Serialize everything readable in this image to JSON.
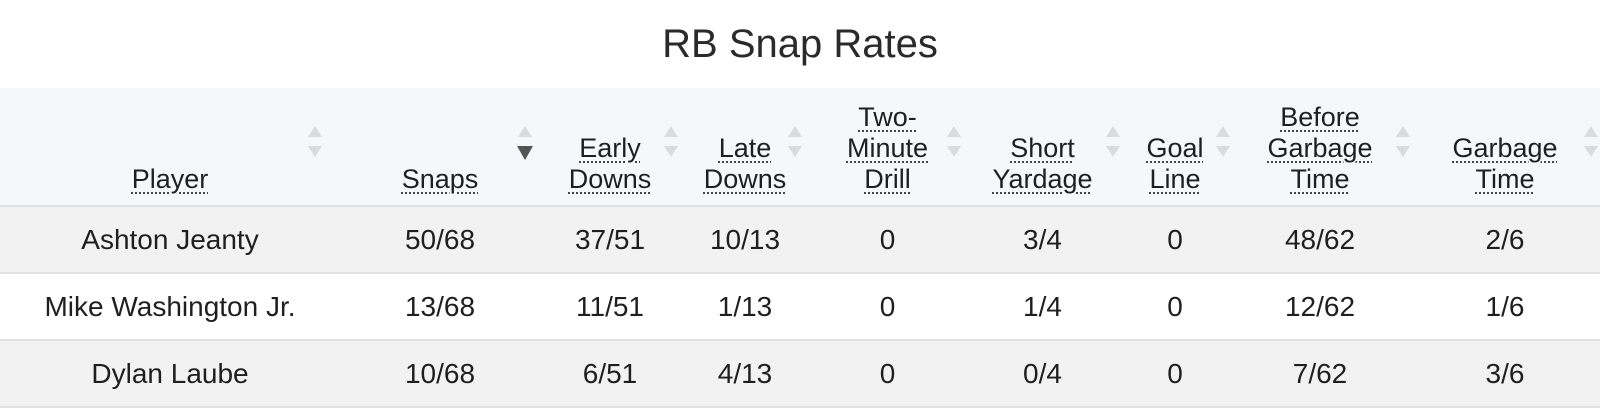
{
  "title": "RB Snap Rates",
  "columns": [
    {
      "label": "Player"
    },
    {
      "label": "Snaps"
    },
    {
      "label": "Early Downs"
    },
    {
      "label": "Late Downs"
    },
    {
      "label": "Two-Minute Drill"
    },
    {
      "label": "Short Yardage"
    },
    {
      "label": "Goal Line"
    },
    {
      "label": "Before Garbage Time"
    },
    {
      "label": "Garbage Time"
    }
  ],
  "sorted_column": "Snaps",
  "sort_direction": "descending",
  "rows": [
    [
      "Ashton Jeanty",
      "50/68",
      "37/51",
      "10/13",
      "0",
      "3/4",
      "0",
      "48/62",
      "2/6"
    ],
    [
      "Mike Washington Jr.",
      "13/68",
      "11/51",
      "1/13",
      "0",
      "1/4",
      "0",
      "12/62",
      "1/6"
    ],
    [
      "Dylan Laube",
      "10/68",
      "6/51",
      "4/13",
      "0",
      "0/4",
      "0",
      "7/62",
      "3/6"
    ]
  ],
  "colors": {
    "header_bg": "#f5f7fa",
    "odd_row_bg": "#f2f2f2",
    "row_border": "#dfe1e4"
  }
}
